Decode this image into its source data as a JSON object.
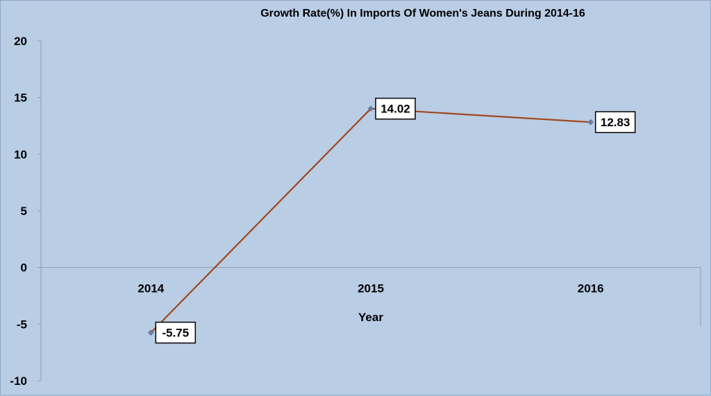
{
  "chart_data": {
    "type": "line",
    "title": "Growth Rate(%) In Imports Of Women's Jeans During 2014-16",
    "xlabel": "Year",
    "ylabel": "",
    "categories": [
      "2014",
      "2015",
      "2016"
    ],
    "series": [
      {
        "values": [
          -5.75,
          14.02,
          12.83
        ],
        "labels": [
          "-5.75",
          "14.02",
          "12.83"
        ]
      }
    ],
    "yticks": [
      "20",
      "15",
      "10",
      "5",
      "0",
      "-5",
      "-10"
    ],
    "ylim": [
      -10,
      20
    ],
    "grid": false,
    "legend": "none",
    "colors": {
      "background": "#b9cde5",
      "line": "#a0461c",
      "marker": "#6a7f9a",
      "axis": "#8a9db5",
      "label_bg": "#ffffff"
    }
  }
}
